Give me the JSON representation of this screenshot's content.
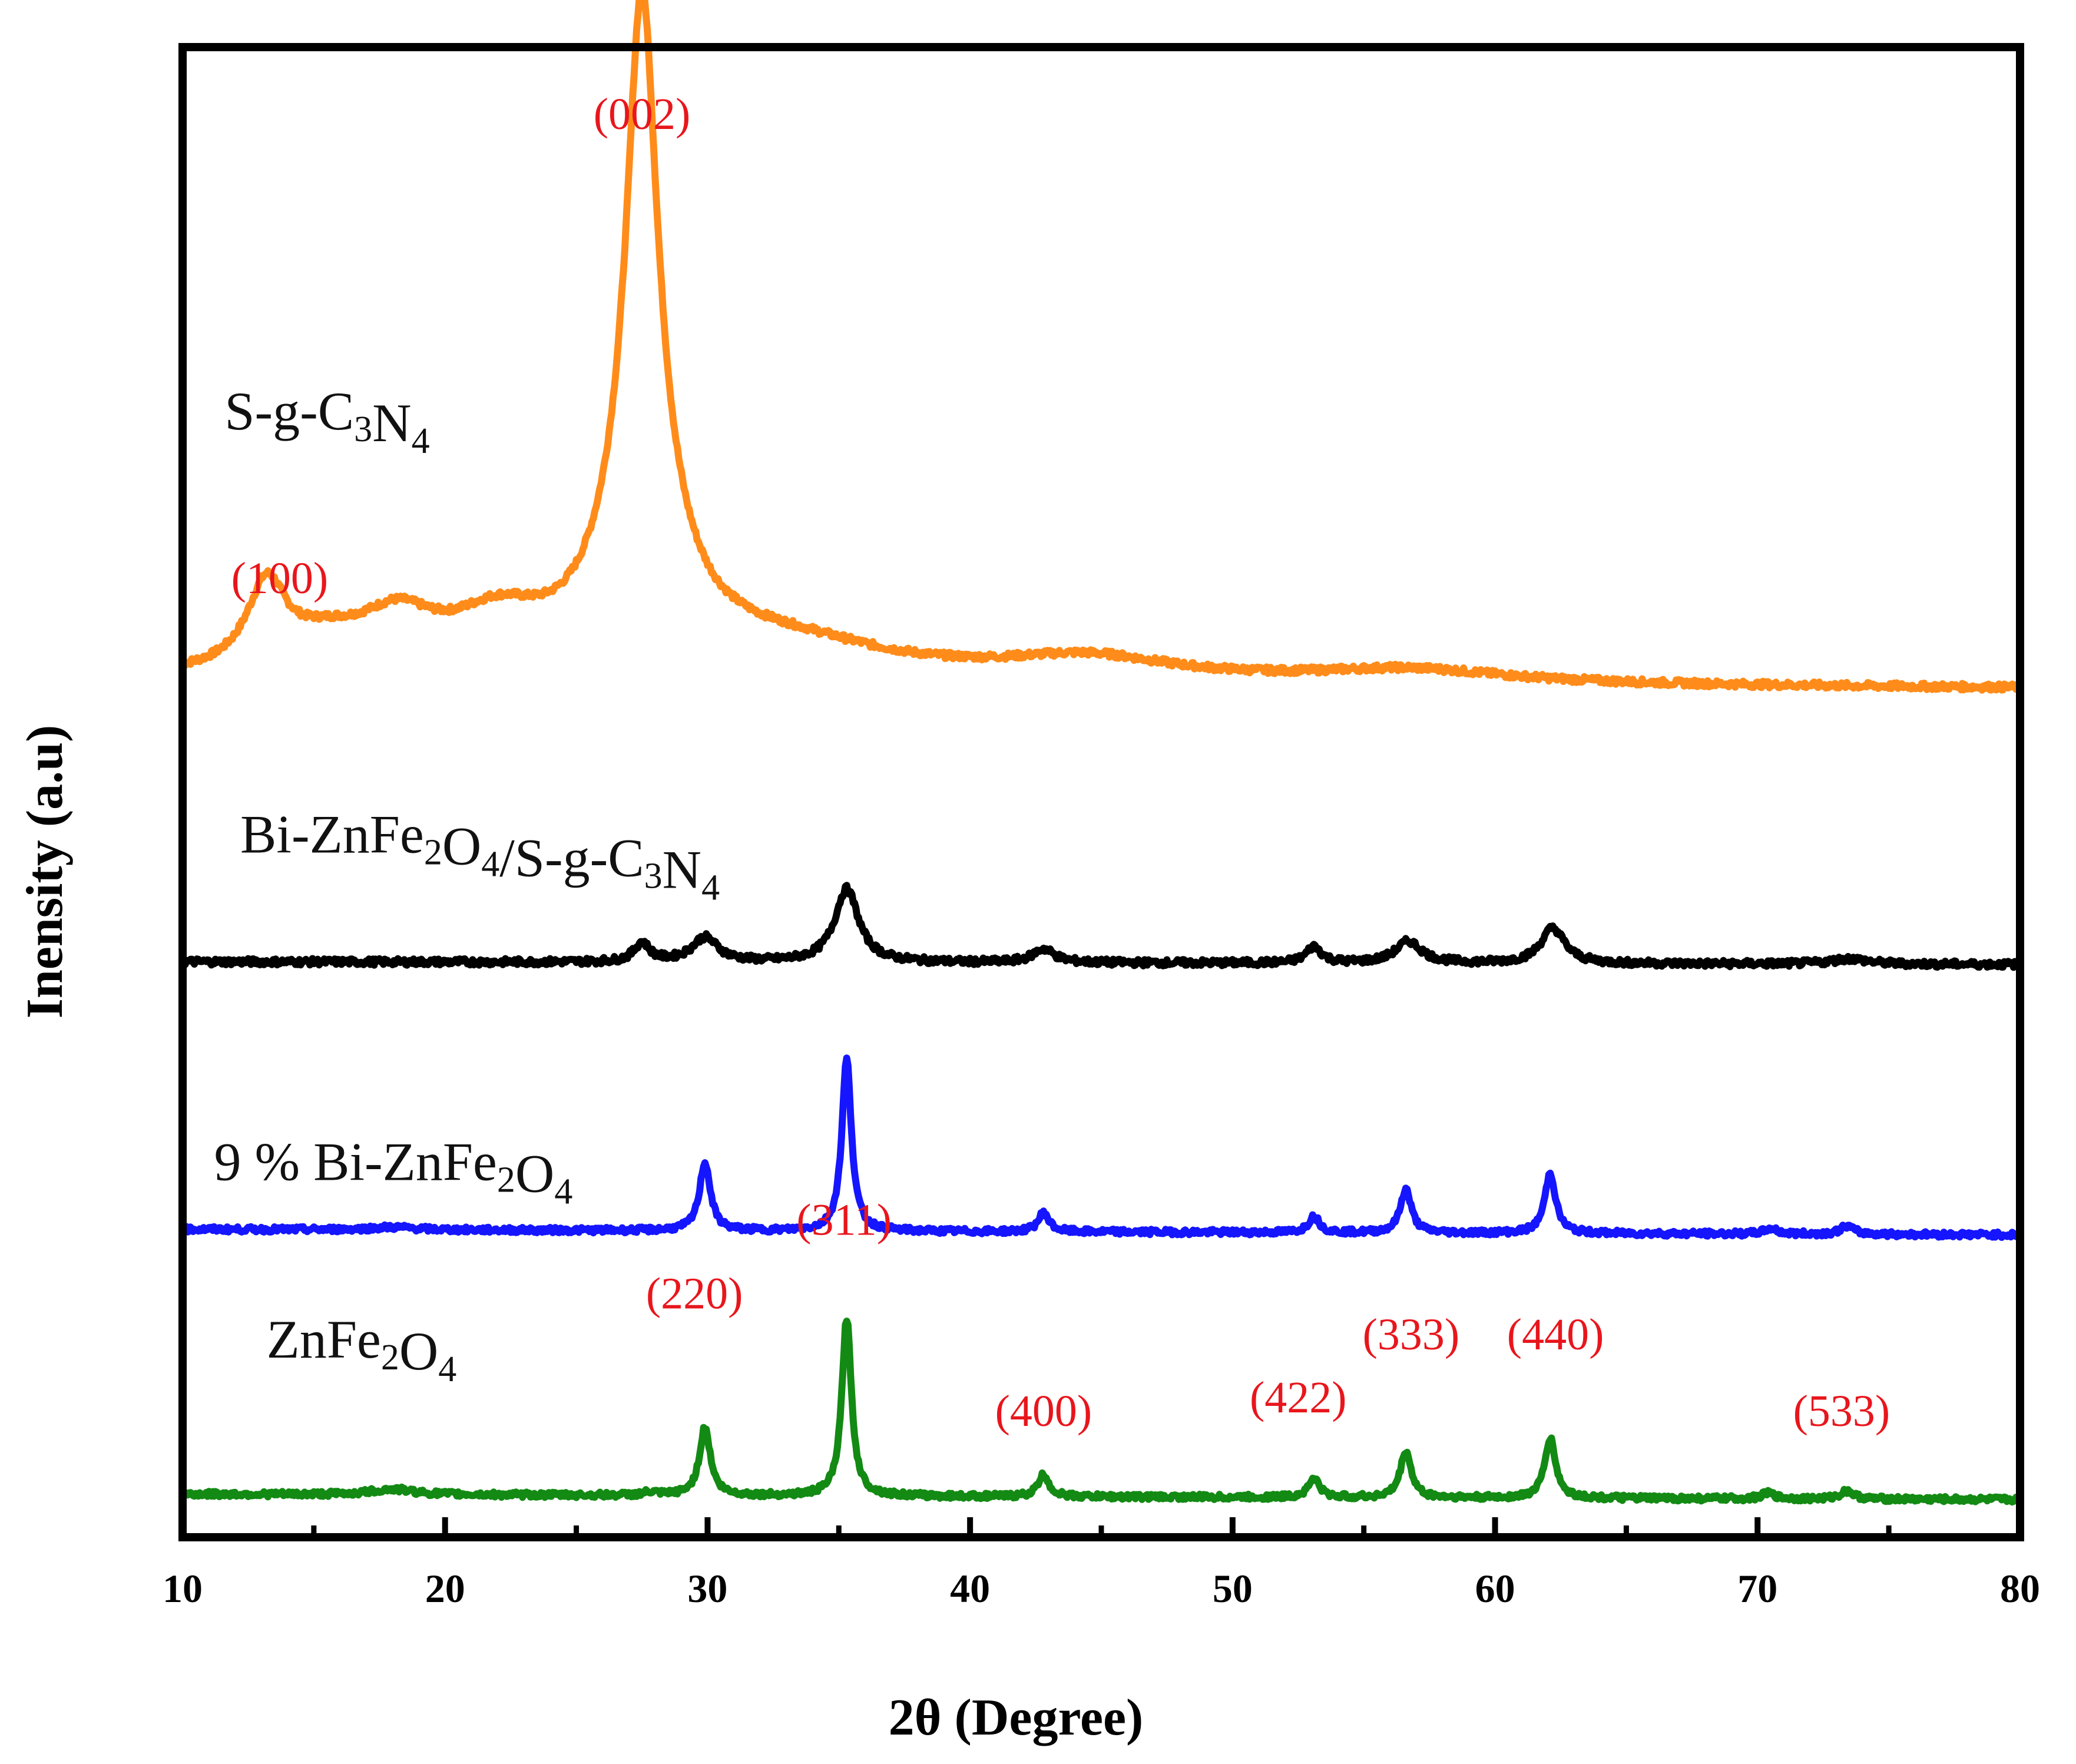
{
  "chart_data": {
    "type": "line",
    "title": "",
    "xlabel": "2θ (Degree)",
    "ylabel": "Inensity (a.u)",
    "xlim": [
      10,
      80
    ],
    "ylim": [
      0,
      5.35
    ],
    "xticks": [
      "10",
      "20",
      "30",
      "40",
      "50",
      "60",
      "70",
      "80"
    ],
    "y_tick_labels": false,
    "grid": false,
    "legend": "none (series labeled inline)",
    "series": [
      {
        "name": "S-g-C3N4",
        "label_parts": [
          [
            "S-g-C",
            ""
          ],
          [
            "3",
            "sub"
          ],
          [
            "N",
            ""
          ],
          [
            "4",
            "sub"
          ]
        ],
        "color": "#ff8c1a",
        "baseline": 3.03,
        "baseline_end": 3.0,
        "noise": 0.012,
        "peaks": [
          {
            "x": 13.2,
            "h": 0.3,
            "w": 0.9
          },
          {
            "x": 15.5,
            "h": 0.1,
            "w": 2.0
          },
          {
            "x": 18.2,
            "h": 0.17,
            "w": 1.8
          },
          {
            "x": 22.0,
            "h": 0.17,
            "w": 2.2
          },
          {
            "x": 27.5,
            "h": 1.9,
            "w": 0.7
          },
          {
            "x": 27.5,
            "h": 0.55,
            "w": 1.8
          },
          {
            "x": 33.0,
            "h": 0.12,
            "w": 5.0
          },
          {
            "x": 44.5,
            "h": 0.08,
            "w": 4.0
          },
          {
            "x": 56.8,
            "h": 0.05,
            "w": 4.5
          }
        ]
      },
      {
        "name": "Bi-ZnFe2O4/S-g-C3N4",
        "label_parts": [
          [
            "Bi-ZnFe",
            ""
          ],
          [
            "2",
            "sub"
          ],
          [
            "O",
            ""
          ],
          [
            "4",
            "sub"
          ],
          [
            "/S-g-C",
            ""
          ],
          [
            "3",
            "sub"
          ],
          [
            "N",
            ""
          ],
          [
            "4",
            "sub"
          ]
        ],
        "color": "#000000",
        "baseline": 2.0,
        "baseline_end": 1.99,
        "noise": 0.012,
        "peaks": [
          {
            "x": 27.5,
            "h": 0.07,
            "w": 0.35
          },
          {
            "x": 29.9,
            "h": 0.09,
            "w": 0.6
          },
          {
            "x": 35.3,
            "h": 0.27,
            "w": 0.55
          },
          {
            "x": 42.8,
            "h": 0.05,
            "w": 0.5
          },
          {
            "x": 53.1,
            "h": 0.06,
            "w": 0.35
          },
          {
            "x": 56.7,
            "h": 0.08,
            "w": 0.6
          },
          {
            "x": 62.2,
            "h": 0.13,
            "w": 0.55
          },
          {
            "x": 73.5,
            "h": 0.02,
            "w": 0.8
          }
        ]
      },
      {
        "name": "9 % Bi-ZnFe2O4",
        "label_parts": [
          [
            "9 % Bi-ZnFe",
            ""
          ],
          [
            "2",
            "sub"
          ],
          [
            "O",
            ""
          ],
          [
            "4",
            "sub"
          ]
        ],
        "color": "#1515ff",
        "baseline": 1.02,
        "baseline_end": 1.0,
        "noise": 0.01,
        "peaks": [
          {
            "x": 18.0,
            "h": 0.01,
            "w": 1.0
          },
          {
            "x": 29.9,
            "h": 0.25,
            "w": 0.25
          },
          {
            "x": 35.3,
            "h": 0.63,
            "w": 0.22
          },
          {
            "x": 42.8,
            "h": 0.07,
            "w": 0.25
          },
          {
            "x": 53.1,
            "h": 0.06,
            "w": 0.25
          },
          {
            "x": 56.6,
            "h": 0.16,
            "w": 0.25
          },
          {
            "x": 62.1,
            "h": 0.22,
            "w": 0.25
          },
          {
            "x": 70.5,
            "h": 0.02,
            "w": 0.3
          },
          {
            "x": 73.4,
            "h": 0.03,
            "w": 0.3
          }
        ]
      },
      {
        "name": "ZnFe2O4",
        "label_parts": [
          [
            "ZnFe",
            ""
          ],
          [
            "2",
            "sub"
          ],
          [
            "O",
            ""
          ],
          [
            "4",
            "sub"
          ]
        ],
        "color": "#138a13",
        "baseline": 0.05,
        "baseline_end": 0.03,
        "noise": 0.01,
        "peaks": [
          {
            "x": 18.0,
            "h": 0.02,
            "w": 1.0
          },
          {
            "x": 27.8,
            "h": 0.01,
            "w": 0.3
          },
          {
            "x": 29.9,
            "h": 0.25,
            "w": 0.25
          },
          {
            "x": 35.3,
            "h": 0.65,
            "w": 0.22
          },
          {
            "x": 42.8,
            "h": 0.08,
            "w": 0.25
          },
          {
            "x": 53.1,
            "h": 0.07,
            "w": 0.25
          },
          {
            "x": 56.6,
            "h": 0.17,
            "w": 0.25
          },
          {
            "x": 62.1,
            "h": 0.22,
            "w": 0.25
          },
          {
            "x": 70.4,
            "h": 0.02,
            "w": 0.3
          },
          {
            "x": 73.4,
            "h": 0.03,
            "w": 0.3
          }
        ]
      }
    ],
    "annotations": [
      {
        "text": "(002)",
        "x": 27.5,
        "y": 5.05,
        "color": "#e8161c"
      },
      {
        "text": "(100)",
        "x": 13.7,
        "y": 3.35,
        "color": "#e8161c"
      },
      {
        "text": "(311)",
        "x": 35.2,
        "y": 1.0,
        "color": "#e8161c"
      },
      {
        "text": "(220)",
        "x": 29.5,
        "y": 0.73,
        "color": "#e8161c"
      },
      {
        "text": "(400)",
        "x": 42.8,
        "y": 0.3,
        "color": "#e8161c"
      },
      {
        "text": "(422)",
        "x": 52.5,
        "y": 0.35,
        "color": "#e8161c"
      },
      {
        "text": "(333)",
        "x": 56.8,
        "y": 0.58,
        "color": "#e8161c"
      },
      {
        "text": "(440)",
        "x": 62.3,
        "y": 0.58,
        "color": "#e8161c"
      },
      {
        "text": "(533)",
        "x": 73.2,
        "y": 0.3,
        "color": "#e8161c"
      }
    ],
    "series_label_positions": [
      {
        "series": 0,
        "x": 11.6,
        "y": 3.95
      },
      {
        "series": 1,
        "x": 12.2,
        "y": 2.4
      },
      {
        "series": 2,
        "x": 11.2,
        "y": 1.2
      },
      {
        "series": 3,
        "x": 13.2,
        "y": 0.55
      }
    ]
  }
}
